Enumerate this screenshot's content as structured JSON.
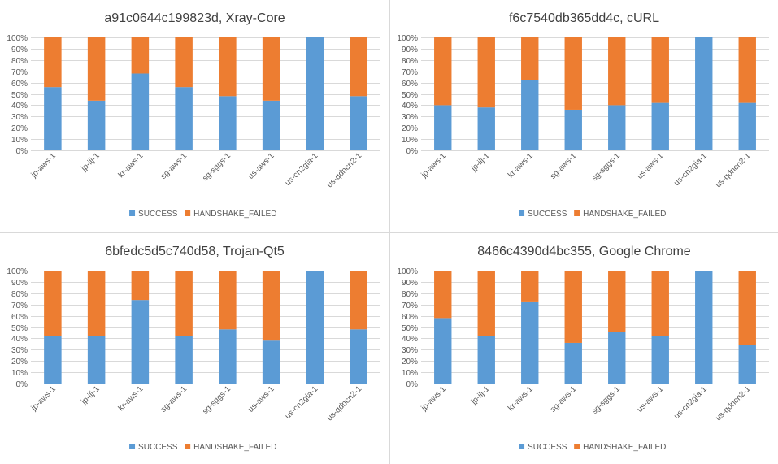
{
  "chart_data": [
    {
      "type": "bar",
      "stacked": "percent",
      "title": "a91c0644c199823d, Xray-Core",
      "categories": [
        "jp-aws-1",
        "jp-ilj-1",
        "kr-aws-1",
        "sg-aws-1",
        "sg-sggs-1",
        "us-aws-1",
        "us-cn2gia-1",
        "us-qdncn2-1"
      ],
      "series": [
        {
          "name": "SUCCESS",
          "values": [
            56,
            44,
            68,
            56,
            48,
            44,
            100,
            48
          ]
        },
        {
          "name": "HANDSHAKE_FAILED",
          "values": [
            44,
            56,
            32,
            44,
            52,
            56,
            0,
            52
          ]
        }
      ],
      "ylim": [
        0,
        100
      ],
      "yticks": [
        "0%",
        "10%",
        "20%",
        "30%",
        "40%",
        "50%",
        "60%",
        "70%",
        "80%",
        "90%",
        "100%"
      ],
      "grid": true,
      "legend": "bottom"
    },
    {
      "type": "bar",
      "stacked": "percent",
      "title": "f6c7540db365dd4c, cURL",
      "categories": [
        "jp-aws-1",
        "jp-ilj-1",
        "kr-aws-1",
        "sg-aws-1",
        "sg-sggs-1",
        "us-aws-1",
        "us-cn2gia-1",
        "us-qdncn2-1"
      ],
      "series": [
        {
          "name": "SUCCESS",
          "values": [
            40,
            38,
            62,
            36,
            40,
            42,
            100,
            42
          ]
        },
        {
          "name": "HANDSHAKE_FAILED",
          "values": [
            60,
            62,
            38,
            64,
            60,
            58,
            0,
            58
          ]
        }
      ],
      "ylim": [
        0,
        100
      ],
      "yticks": [
        "0%",
        "10%",
        "20%",
        "30%",
        "40%",
        "50%",
        "60%",
        "70%",
        "80%",
        "90%",
        "100%"
      ],
      "grid": true,
      "legend": "bottom"
    },
    {
      "type": "bar",
      "stacked": "percent",
      "title": "6bfedc5d5c740d58, Trojan-Qt5",
      "categories": [
        "jp-aws-1",
        "jp-ilj-1",
        "kr-aws-1",
        "sg-aws-1",
        "sg-sggs-1",
        "us-aws-1",
        "us-cn2gia-1",
        "us-qdncn2-1"
      ],
      "series": [
        {
          "name": "SUCCESS",
          "values": [
            42,
            42,
            74,
            42,
            48,
            38,
            100,
            48
          ]
        },
        {
          "name": "HANDSHAKE_FAILED",
          "values": [
            58,
            58,
            26,
            58,
            52,
            62,
            0,
            52
          ]
        }
      ],
      "ylim": [
        0,
        100
      ],
      "yticks": [
        "0%",
        "10%",
        "20%",
        "30%",
        "40%",
        "50%",
        "60%",
        "70%",
        "80%",
        "90%",
        "100%"
      ],
      "grid": true,
      "legend": "bottom"
    },
    {
      "type": "bar",
      "stacked": "percent",
      "title": "8466c4390d4bc355, Google Chrome",
      "categories": [
        "jp-aws-1",
        "jp-ilj-1",
        "kr-aws-1",
        "sg-aws-1",
        "sg-sggs-1",
        "us-aws-1",
        "us-cn2gia-1",
        "us-qdncn2-1"
      ],
      "series": [
        {
          "name": "SUCCESS",
          "values": [
            58,
            42,
            72,
            36,
            46,
            42,
            100,
            34
          ]
        },
        {
          "name": "HANDSHAKE_FAILED",
          "values": [
            42,
            58,
            28,
            64,
            54,
            58,
            0,
            66
          ]
        }
      ],
      "ylim": [
        0,
        100
      ],
      "yticks": [
        "0%",
        "10%",
        "20%",
        "30%",
        "40%",
        "50%",
        "60%",
        "70%",
        "80%",
        "90%",
        "100%"
      ],
      "grid": true,
      "legend": "bottom"
    }
  ],
  "colors": {
    "success": "#5b9bd5",
    "failed": "#ed7d31",
    "gridline": "#d9d9d9",
    "text": "#595959",
    "title": "#404040"
  }
}
